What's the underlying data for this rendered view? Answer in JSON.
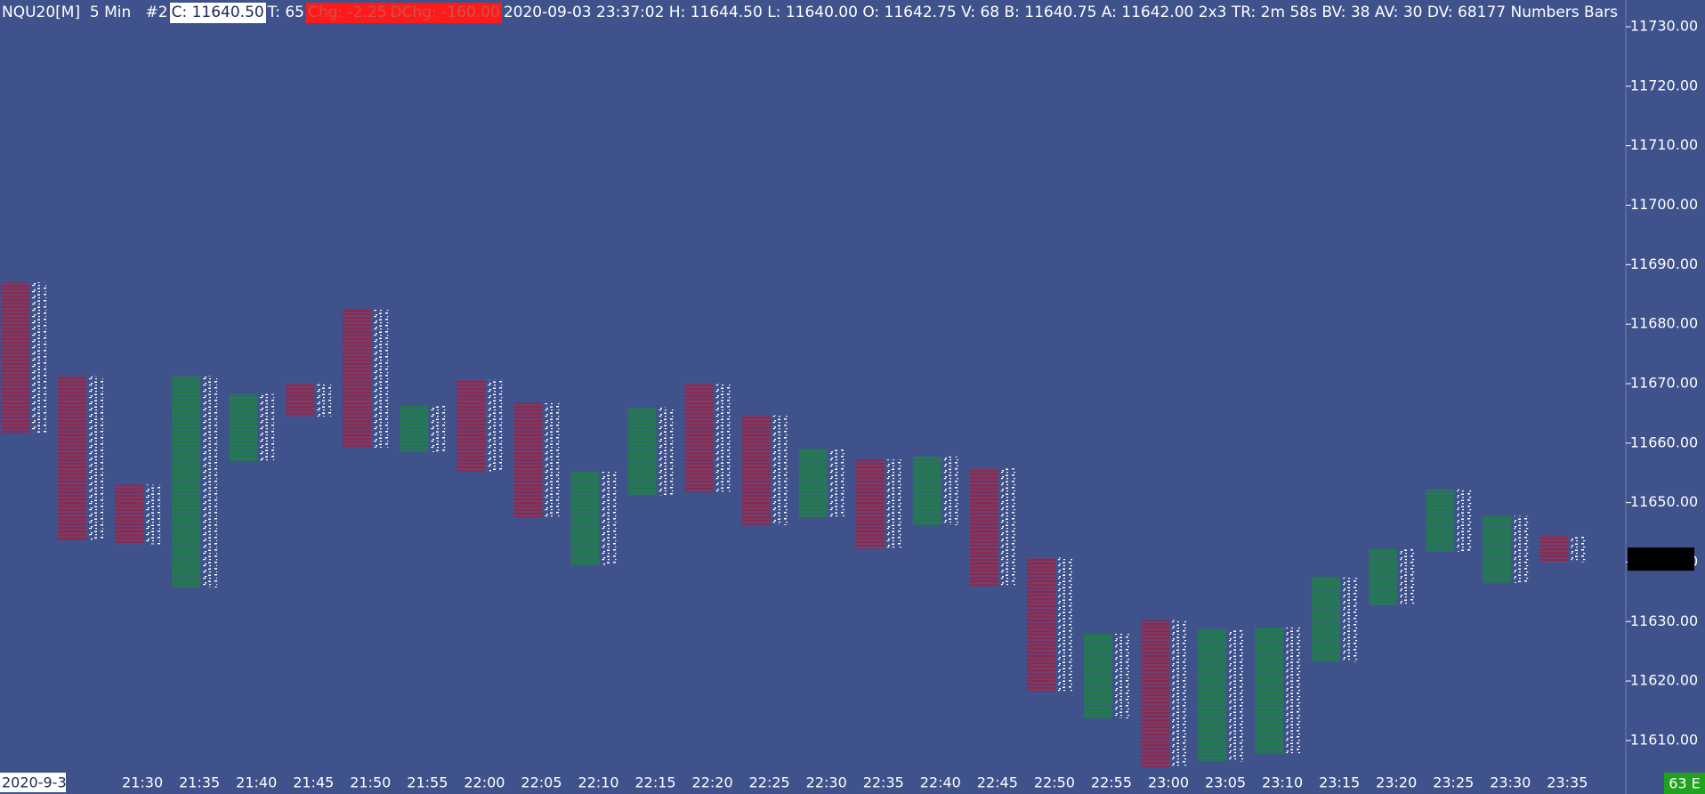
{
  "header": {
    "symbol": "NQU20[M]  5 Min   #2",
    "close": "C: 11640.50",
    "trades": "T: 65",
    "change": "Chg: -2.25",
    "daily_change": "DChg: -160.00",
    "info": "2020-09-03 23:37:02 H: 11644.50 L: 11640.00 O: 11642.75 V: 68 B: 11640.75 A: 11642.00 2x3 TR: 2m 58s BV: 38 AV: 30 DV: 68177 Numbers Bars"
  },
  "chart_data": {
    "type": "candlestick",
    "date_label": "2020-9-3",
    "status": "63 E",
    "categories": [
      null,
      null,
      "21:30",
      "21:35",
      "21:40",
      "21:45",
      "21:50",
      "21:55",
      "22:00",
      "22:05",
      "22:10",
      "22:15",
      "22:20",
      "22:25",
      "22:30",
      "22:35",
      "22:40",
      "22:45",
      "22:50",
      "22:55",
      "23:00",
      "23:05",
      "23:10",
      "23:15",
      "23:20",
      "23:25",
      "23:30",
      "23:35"
    ],
    "high": [
      11687.0,
      11671.25,
      11653.0,
      11671.25,
      11668.25,
      11670.0,
      11682.5,
      11666.25,
      11670.75,
      11666.75,
      11655.25,
      11666.0,
      11670.0,
      11664.75,
      11659.0,
      11657.25,
      11657.75,
      11655.75,
      11640.75,
      11628.0,
      11630.25,
      11628.75,
      11629.0,
      11637.5,
      11642.25,
      11652.25,
      11647.75,
      11644.5
    ],
    "low": [
      11661.75,
      11643.75,
      11643.0,
      11635.75,
      11657.0,
      11664.5,
      11659.25,
      11658.5,
      11655.25,
      11647.5,
      11639.5,
      11651.25,
      11651.75,
      11646.25,
      11647.5,
      11642.25,
      11646.25,
      11636.0,
      11618.25,
      11613.75,
      11605.5,
      11606.5,
      11607.75,
      11623.25,
      11632.75,
      11641.75,
      11636.5,
      11640.0
    ],
    "colors": [
      "#8c2a4e",
      "#8c2a4e",
      "#8c2a4e",
      "#1f7a48",
      "#1f7a48",
      "#8c2a4e",
      "#8c2a4e",
      "#1f7a48",
      "#8c2a4e",
      "#8c2a4e",
      "#1f7a48",
      "#1f7a48",
      "#8c2a4e",
      "#8c2a4e",
      "#1f7a48",
      "#8c2a4e",
      "#1f7a48",
      "#8c2a4e",
      "#8c2a4e",
      "#1f7a48",
      "#8c2a4e",
      "#1f7a48",
      "#1f7a48",
      "#1f7a48",
      "#1f7a48",
      "#1f7a48",
      "#1f7a48",
      "#8c2a4e"
    ],
    "last_price": 11640.5,
    "ylim": [
      11605.5,
      11734.5
    ],
    "yticks": [
      {
        "value": 11610,
        "label": "11610.00"
      },
      {
        "value": 11620,
        "label": "11620.00"
      },
      {
        "value": 11630,
        "label": "11630.00"
      },
      {
        "value": 11640,
        "label": "11640.00"
      },
      {
        "value": 11650,
        "label": "11650.00"
      },
      {
        "value": 11660,
        "label": "11660.00"
      },
      {
        "value": 11670,
        "label": "11670.00"
      },
      {
        "value": 11680,
        "label": "11680.00"
      },
      {
        "value": 11690,
        "label": "11690.00"
      },
      {
        "value": 11700,
        "label": "11700.00"
      },
      {
        "value": 11710,
        "label": "11710.00"
      },
      {
        "value": 11720,
        "label": "11720.00"
      },
      {
        "value": 11730,
        "label": "11730.00"
      }
    ]
  }
}
